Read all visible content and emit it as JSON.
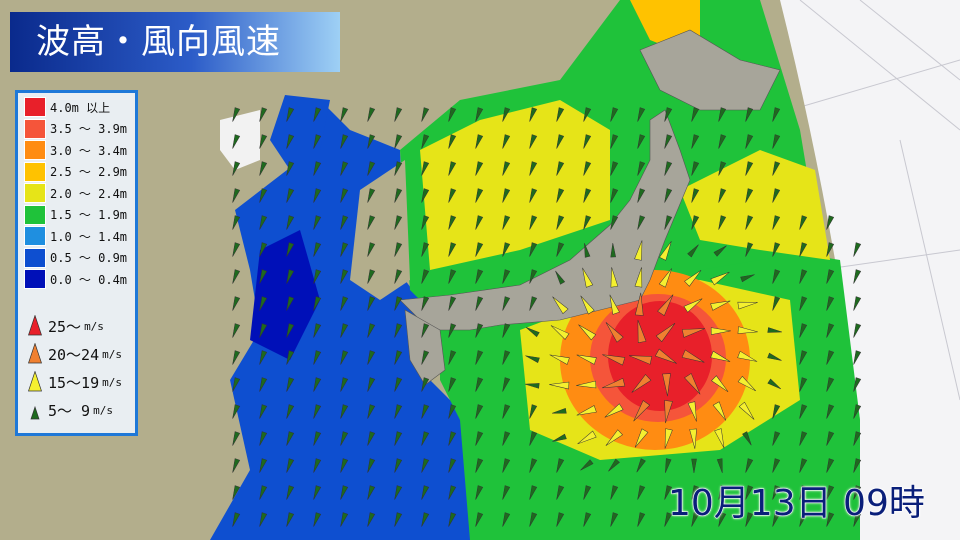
{
  "title": "波高・風向風速",
  "datetime": "10月13日 09時",
  "legend": {
    "wave_height": [
      {
        "label": "4.0m 以上",
        "color": "#e8202a"
      },
      {
        "label": "3.5 ～ 3.9m",
        "color": "#f5553a"
      },
      {
        "label": "3.0 ～ 3.4m",
        "color": "#ff8c12"
      },
      {
        "label": "2.5 ～ 2.9m",
        "color": "#ffc200"
      },
      {
        "label": "2.0 ～ 2.4m",
        "color": "#e6e418"
      },
      {
        "label": "1.5 ～ 1.9m",
        "color": "#1fc23a"
      },
      {
        "label": "1.0 ～ 1.4m",
        "color": "#1f8fe0"
      },
      {
        "label": "0.5 ～ 0.9m",
        "color": "#0e4fd0"
      },
      {
        "label": "0.0 ～ 0.4m",
        "color": "#0010b8"
      }
    ],
    "wind_speed": [
      {
        "label": "25～",
        "unit": "m/s",
        "color": "#e8202a"
      },
      {
        "label": "20～24",
        "unit": "m/s",
        "color": "#f08030"
      },
      {
        "label": "15～19",
        "unit": "m/s",
        "color": "#f5f030"
      },
      {
        "label": "5～ 9",
        "unit": "m/s",
        "color": "#1e6a1e"
      }
    ]
  }
}
